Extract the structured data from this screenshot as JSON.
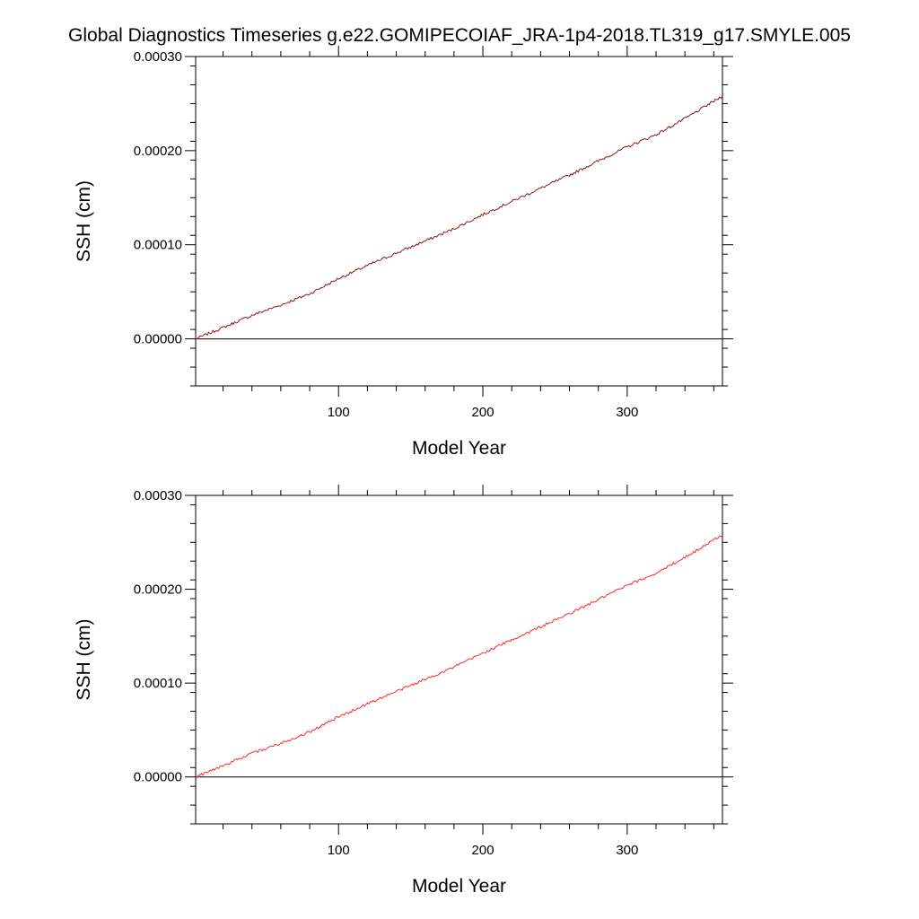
{
  "title": "Global Diagnostics Timeseries g.e22.GOMIPECOIAF_JRA-1p4-2018.TL319_g17.SMYLE.005",
  "colors": {
    "top_line": "#8b1a1a",
    "bottom_line": "#ff2a2a",
    "axes": "#000000",
    "zero_line": "#000000"
  },
  "chart_data": [
    {
      "type": "line",
      "xlabel": "Model Year",
      "ylabel": "SSH (cm)",
      "xlim": [
        1,
        366
      ],
      "ylim": [
        -5e-05,
        0.0003
      ],
      "x_ticks": [
        "100",
        "200",
        "300"
      ],
      "x_tick_values": [
        100,
        200,
        300
      ],
      "y_ticks": [
        "0.00000",
        "0.00010",
        "0.00020",
        "0.00030"
      ],
      "y_tick_values": [
        0,
        0.0001,
        0.0002,
        0.0003
      ],
      "reference_line": 0,
      "series": [
        {
          "color": "#8b1a1a",
          "x": [
            1,
            20,
            40,
            60,
            80,
            100,
            120,
            140,
            160,
            180,
            200,
            220,
            240,
            260,
            280,
            300,
            320,
            340,
            366
          ],
          "y": [
            0.0,
            1.2e-05,
            2.5e-05,
            3.6e-05,
            4.8e-05,
            6.4e-05,
            7.8e-05,
            9.1e-05,
            0.000104,
            0.000117,
            0.000132,
            0.000146,
            0.00016,
            0.000174,
            0.000189,
            0.000204,
            0.000217,
            0.000234,
            0.000258
          ]
        }
      ]
    },
    {
      "type": "line",
      "xlabel": "Model Year",
      "ylabel": "SSH (cm)",
      "xlim": [
        1,
        366
      ],
      "ylim": [
        -5e-05,
        0.0003
      ],
      "x_ticks": [
        "100",
        "200",
        "300"
      ],
      "x_tick_values": [
        100,
        200,
        300
      ],
      "y_ticks": [
        "0.00000",
        "0.00010",
        "0.00020",
        "0.00030"
      ],
      "y_tick_values": [
        0,
        0.0001,
        0.0002,
        0.0003
      ],
      "reference_line": 0,
      "series": [
        {
          "color": "#ff2a2a",
          "x": [
            1,
            20,
            40,
            60,
            80,
            100,
            120,
            140,
            160,
            180,
            200,
            220,
            240,
            260,
            280,
            300,
            320,
            340,
            366
          ],
          "y": [
            0.0,
            1.2e-05,
            2.5e-05,
            3.6e-05,
            4.8e-05,
            6.4e-05,
            7.8e-05,
            9.1e-05,
            0.000104,
            0.000117,
            0.000132,
            0.000146,
            0.00016,
            0.000174,
            0.000189,
            0.000204,
            0.000217,
            0.000234,
            0.000258
          ]
        }
      ]
    }
  ]
}
